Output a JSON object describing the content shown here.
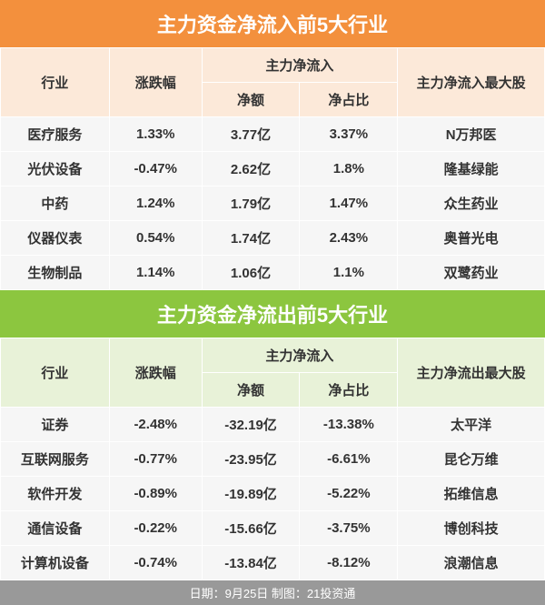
{
  "inflow": {
    "title": "主力资金净流入前5大行业",
    "header_bg": "#f3903d",
    "thead_bg": "#fce9d9",
    "columns": {
      "industry": "行业",
      "change": "涨跌幅",
      "netflow_group": "主力净流入",
      "net_amount": "净额",
      "net_ratio": "净占比",
      "top_stock": "主力净流入最大股"
    },
    "rows": [
      {
        "industry": "医疗服务",
        "change": "1.33%",
        "net_amount": "3.77亿",
        "net_ratio": "3.37%",
        "top_stock": "N万邦医"
      },
      {
        "industry": "光伏设备",
        "change": "-0.47%",
        "net_amount": "2.62亿",
        "net_ratio": "1.8%",
        "top_stock": "隆基绿能"
      },
      {
        "industry": "中药",
        "change": "1.24%",
        "net_amount": "1.79亿",
        "net_ratio": "1.47%",
        "top_stock": "众生药业"
      },
      {
        "industry": "仪器仪表",
        "change": "0.54%",
        "net_amount": "1.74亿",
        "net_ratio": "2.43%",
        "top_stock": "奥普光电"
      },
      {
        "industry": "生物制品",
        "change": "1.14%",
        "net_amount": "1.06亿",
        "net_ratio": "1.1%",
        "top_stock": "双鹭药业"
      }
    ]
  },
  "outflow": {
    "title": "主力资金净流出前5大行业",
    "header_bg": "#8cc63f",
    "thead_bg": "#e8f2d8",
    "columns": {
      "industry": "行业",
      "change": "涨跌幅",
      "netflow_group": "主力净流入",
      "net_amount": "净额",
      "net_ratio": "净占比",
      "top_stock": "主力净流出最大股"
    },
    "rows": [
      {
        "industry": "证券",
        "change": "-2.48%",
        "net_amount": "-32.19亿",
        "net_ratio": "-13.38%",
        "top_stock": "太平洋"
      },
      {
        "industry": "互联网服务",
        "change": "-0.77%",
        "net_amount": "-23.95亿",
        "net_ratio": "-6.61%",
        "top_stock": "昆仑万维"
      },
      {
        "industry": "软件开发",
        "change": "-0.89%",
        "net_amount": "-19.89亿",
        "net_ratio": "-5.22%",
        "top_stock": "拓维信息"
      },
      {
        "industry": "通信设备",
        "change": "-0.22%",
        "net_amount": "-15.66亿",
        "net_ratio": "-3.75%",
        "top_stock": "博创科技"
      },
      {
        "industry": "计算机设备",
        "change": "-0.74%",
        "net_amount": "-13.84亿",
        "net_ratio": "-8.12%",
        "top_stock": "浪潮信息"
      }
    ]
  },
  "footer": "日期：9月25日 制图：21投资通"
}
